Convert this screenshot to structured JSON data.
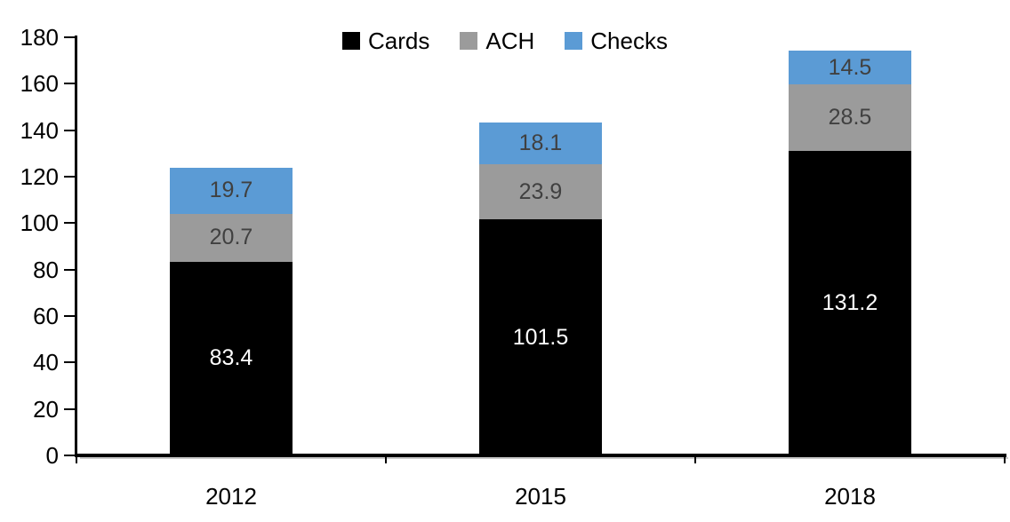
{
  "chart_data": {
    "type": "bar",
    "stacked": true,
    "title": "",
    "xlabel": "",
    "ylabel": "",
    "categories": [
      "2012",
      "2015",
      "2018"
    ],
    "series": [
      {
        "name": "Cards",
        "color": "#000000",
        "label_color": "#ffffff",
        "values": [
          83.4,
          101.5,
          131.2
        ]
      },
      {
        "name": "ACH",
        "color": "#9b9b9b",
        "label_color": "#404040",
        "values": [
          20.7,
          23.9,
          28.5
        ]
      },
      {
        "name": "Checks",
        "color": "#5b9bd5",
        "label_color": "#404040",
        "values": [
          19.7,
          18.1,
          14.5
        ]
      }
    ],
    "totals": [
      123.8,
      143.5,
      174.2
    ],
    "ylim": [
      0,
      180
    ],
    "ytick_step": 20,
    "yticks": [
      0,
      20,
      40,
      60,
      80,
      100,
      120,
      140,
      160,
      180
    ],
    "legend_position": "top-center",
    "legend_entries": [
      "Cards",
      "ACH",
      "Checks"
    ],
    "grid": false,
    "data_labels": true
  }
}
